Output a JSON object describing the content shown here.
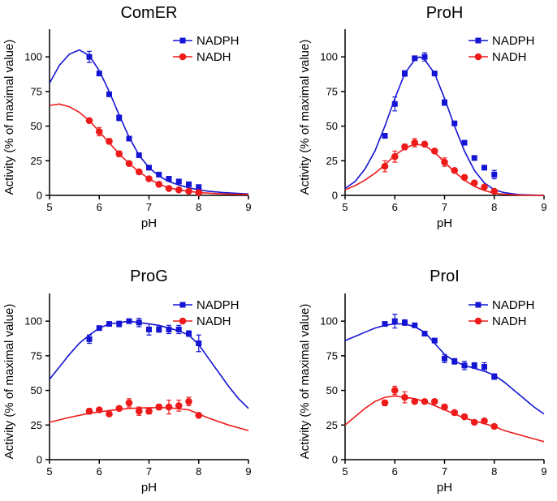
{
  "chart_data": [
    {
      "type": "scatter",
      "title": "ComER",
      "xlabel": "pH",
      "ylabel": "Activity (% of maximal value)",
      "xlim": [
        5,
        9
      ],
      "ylim": [
        0,
        120
      ],
      "xticks": [
        "5",
        "6",
        "7",
        "8",
        "9"
      ],
      "yticks": [
        "0",
        "25",
        "50",
        "75",
        "100"
      ],
      "legend_position": "top-right",
      "series": [
        {
          "name": "NADPH",
          "color": "#1414d4",
          "marker": "square",
          "x": [
            5.8,
            6.0,
            6.2,
            6.4,
            6.6,
            6.8,
            7.0,
            7.2,
            7.4,
            7.6,
            7.8,
            8.0
          ],
          "y": [
            100,
            88,
            73,
            56,
            41,
            29,
            20,
            15,
            12,
            10,
            8,
            6
          ],
          "err": [
            4,
            1.5,
            1.5,
            2,
            1.5,
            1.5,
            1,
            1,
            1,
            1,
            1,
            1
          ],
          "fit_x": [
            5.0,
            5.2,
            5.4,
            5.6,
            5.8,
            6.0,
            6.2,
            6.4,
            6.6,
            6.8,
            7.0,
            7.2,
            7.4,
            7.6,
            7.8,
            8.0,
            8.2,
            8.5,
            9.0
          ],
          "fit_y": [
            81,
            94,
            102,
            105,
            101,
            90,
            75,
            58,
            42,
            29,
            20,
            14,
            10,
            7.5,
            5.5,
            4,
            3,
            2,
            1
          ]
        },
        {
          "name": "NADH",
          "color": "#ee1a1a",
          "marker": "circle",
          "x": [
            5.8,
            6.0,
            6.2,
            6.4,
            6.6,
            6.8,
            7.0,
            7.2,
            7.4,
            7.6,
            7.8,
            8.0
          ],
          "y": [
            54,
            46,
            39,
            30,
            23,
            17,
            12,
            8,
            5,
            4,
            3,
            2
          ],
          "err": [
            1.5,
            3,
            2,
            2,
            1.5,
            1,
            1,
            1,
            1,
            1,
            1,
            1
          ],
          "fit_x": [
            5.0,
            5.2,
            5.4,
            5.6,
            5.8,
            6.0,
            6.2,
            6.4,
            6.6,
            6.8,
            7.0,
            7.2,
            7.4,
            7.6,
            7.8,
            8.0,
            8.5,
            9.0
          ],
          "fit_y": [
            65,
            66,
            64,
            60,
            54,
            46,
            38,
            30,
            23,
            17,
            12,
            8,
            5.5,
            4,
            3,
            2,
            1,
            0.5
          ]
        }
      ]
    },
    {
      "type": "scatter",
      "title": "ProH",
      "xlabel": "pH",
      "ylabel": "Activity (% of maximal value)",
      "xlim": [
        5,
        9
      ],
      "ylim": [
        0,
        120
      ],
      "xticks": [
        "5",
        "6",
        "7",
        "8",
        "9"
      ],
      "yticks": [
        "0",
        "25",
        "50",
        "75",
        "100"
      ],
      "legend_position": "top-right",
      "series": [
        {
          "name": "NADPH",
          "color": "#1414d4",
          "marker": "square",
          "x": [
            5.8,
            6.0,
            6.2,
            6.4,
            6.6,
            6.8,
            7.0,
            7.2,
            7.4,
            7.6,
            7.8,
            8.0
          ],
          "y": [
            43,
            66,
            88,
            99,
            100,
            88,
            67,
            52,
            38,
            27,
            20,
            15
          ],
          "err": [
            1.5,
            5,
            2,
            1.5,
            3,
            1.5,
            2,
            1.5,
            1.5,
            1.5,
            1.5,
            3
          ],
          "fit_x": [
            5.0,
            5.2,
            5.4,
            5.6,
            5.8,
            6.0,
            6.2,
            6.4,
            6.5,
            6.6,
            6.8,
            7.0,
            7.2,
            7.4,
            7.6,
            7.8,
            8.0,
            8.2,
            8.5,
            9.0
          ],
          "fit_y": [
            5,
            10,
            19,
            32,
            50,
            70,
            88,
            98,
            100,
            98,
            88,
            70,
            50,
            32,
            18,
            9,
            4,
            2,
            0.5,
            0
          ]
        },
        {
          "name": "NADH",
          "color": "#ee1a1a",
          "marker": "circle",
          "x": [
            5.8,
            6.0,
            6.2,
            6.4,
            6.6,
            6.8,
            7.0,
            7.2,
            7.4,
            7.6,
            7.8,
            8.0
          ],
          "y": [
            21,
            28,
            35,
            38,
            37,
            32,
            24,
            18,
            13,
            9,
            6,
            3
          ],
          "err": [
            4,
            4,
            2,
            3,
            1.5,
            1.5,
            3,
            1.5,
            1.5,
            1,
            1,
            1
          ],
          "fit_x": [
            5.0,
            5.2,
            5.4,
            5.6,
            5.8,
            6.0,
            6.2,
            6.4,
            6.6,
            6.8,
            7.0,
            7.2,
            7.4,
            7.6,
            7.8,
            8.0,
            8.2,
            8.5,
            9.0
          ],
          "fit_y": [
            4,
            7,
            11,
            16,
            22,
            29,
            34,
            37,
            36,
            31,
            24,
            17,
            11,
            6.5,
            3.5,
            1.5,
            0.8,
            0.2,
            0
          ]
        }
      ]
    },
    {
      "type": "scatter",
      "title": "ProG",
      "xlabel": "pH",
      "ylabel": "Activity (% of maximal value)",
      "xlim": [
        5,
        9
      ],
      "ylim": [
        0,
        120
      ],
      "xticks": [
        "5",
        "6",
        "7",
        "8",
        "9"
      ],
      "yticks": [
        "0",
        "25",
        "50",
        "75",
        "100"
      ],
      "legend_position": "top-right",
      "series": [
        {
          "name": "NADPH",
          "color": "#1414d4",
          "marker": "square",
          "x": [
            5.8,
            6.0,
            6.2,
            6.4,
            6.6,
            6.8,
            7.0,
            7.2,
            7.4,
            7.6,
            7.8,
            8.0
          ],
          "y": [
            87,
            95,
            98,
            98,
            100,
            99,
            94,
            94,
            94,
            94,
            91,
            84
          ],
          "err": [
            3,
            1,
            1,
            2,
            1,
            3,
            4,
            2,
            3,
            3,
            2,
            6
          ],
          "fit_x": [
            5.0,
            5.2,
            5.4,
            5.6,
            5.8,
            6.0,
            6.2,
            6.4,
            6.6,
            6.8,
            7.0,
            7.2,
            7.4,
            7.6,
            7.8,
            8.0,
            8.2,
            8.4,
            8.6,
            8.8,
            9.0
          ],
          "fit_y": [
            58,
            67,
            76,
            84,
            90,
            95,
            98,
            99,
            100,
            99,
            98,
            97,
            95,
            93,
            90,
            83,
            73,
            63,
            53,
            44,
            37
          ]
        },
        {
          "name": "NADH",
          "color": "#ee1a1a",
          "marker": "circle",
          "x": [
            5.8,
            6.0,
            6.2,
            6.4,
            6.6,
            6.8,
            7.0,
            7.2,
            7.4,
            7.6,
            7.8,
            8.0
          ],
          "y": [
            35,
            36,
            33,
            37,
            41,
            35,
            35,
            38,
            38,
            39,
            42,
            32
          ],
          "err": [
            2,
            1.5,
            1.5,
            1.5,
            3,
            3,
            2,
            2,
            5,
            4,
            3,
            1.5
          ],
          "fit_x": [
            5.0,
            5.4,
            5.8,
            6.2,
            6.6,
            7.0,
            7.4,
            7.8,
            8.0,
            8.2,
            8.6,
            9.0
          ],
          "fit_y": [
            27,
            30.5,
            33.5,
            35.5,
            37,
            37.5,
            37.5,
            36,
            33,
            30,
            25,
            21
          ]
        }
      ]
    },
    {
      "type": "scatter",
      "title": "ProI",
      "xlabel": "pH",
      "ylabel": "Activity (% of maximal value)",
      "xlim": [
        5,
        9
      ],
      "ylim": [
        0,
        120
      ],
      "xticks": [
        "5",
        "6",
        "7",
        "8",
        "9"
      ],
      "yticks": [
        "0",
        "25",
        "50",
        "75",
        "100"
      ],
      "legend_position": "top-right",
      "series": [
        {
          "name": "NADPH",
          "color": "#1414d4",
          "marker": "square",
          "x": [
            5.8,
            6.0,
            6.2,
            6.4,
            6.6,
            6.8,
            7.0,
            7.2,
            7.4,
            7.6,
            7.8,
            8.0
          ],
          "y": [
            98,
            100,
            99,
            97,
            91,
            86,
            73,
            71,
            68,
            68,
            67,
            60
          ],
          "err": [
            1,
            5,
            2,
            1,
            1.5,
            1.5,
            3,
            2,
            3,
            2,
            3,
            2
          ],
          "fit_x": [
            5.0,
            5.2,
            5.4,
            5.6,
            5.8,
            6.0,
            6.2,
            6.4,
            6.6,
            6.8,
            7.0,
            7.2,
            7.4,
            7.6,
            7.8,
            8.0,
            8.2,
            8.4,
            8.6,
            8.8,
            9.0
          ],
          "fit_y": [
            86,
            89,
            92,
            95,
            97,
            98,
            98,
            96,
            92,
            84,
            76,
            71,
            68,
            66,
            64,
            61,
            56,
            50,
            44,
            38,
            33
          ]
        },
        {
          "name": "NADH",
          "color": "#ee1a1a",
          "marker": "circle",
          "x": [
            5.8,
            6.0,
            6.2,
            6.4,
            6.6,
            6.8,
            7.0,
            7.2,
            7.4,
            7.6,
            7.8,
            8.0
          ],
          "y": [
            41,
            50,
            45,
            42,
            42,
            42,
            38,
            34,
            31,
            27,
            28,
            24
          ],
          "err": [
            2,
            3,
            4,
            1.5,
            1.5,
            1.5,
            2,
            1.5,
            1.5,
            1.5,
            1,
            1
          ],
          "fit_x": [
            5.0,
            5.2,
            5.4,
            5.6,
            5.8,
            6.0,
            6.2,
            6.4,
            6.6,
            6.8,
            7.0,
            7.2,
            7.4,
            7.6,
            7.8,
            8.0,
            8.2,
            8.4,
            8.6,
            8.8,
            9.0
          ],
          "fit_y": [
            25,
            31,
            37,
            42,
            45,
            46,
            45,
            44,
            42,
            39,
            36,
            33,
            30,
            28,
            26,
            24,
            21,
            19,
            17,
            15,
            13
          ]
        }
      ]
    }
  ]
}
